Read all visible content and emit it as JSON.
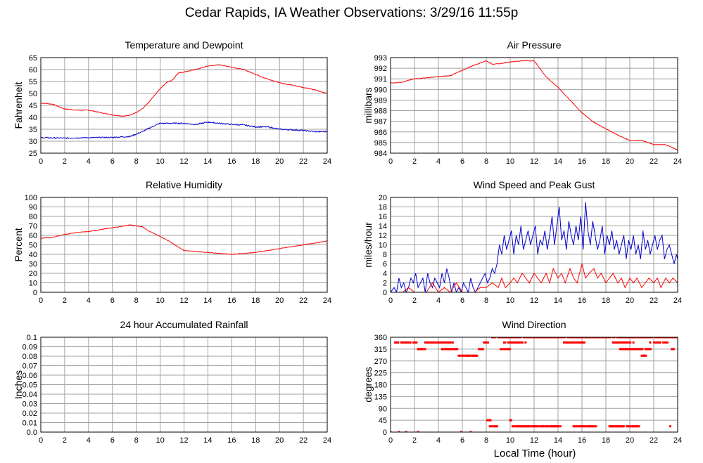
{
  "page": {
    "title": "Cedar Rapids, IA Weather Observations: 3/29/16 11:55p",
    "footer_xlabel": "Local Time (hour)"
  },
  "colors": {
    "red": "#ff0000",
    "blue": "#0000cc",
    "grid": "#a0a0a0",
    "frame": "#000000"
  },
  "chart_data": [
    {
      "id": "temp",
      "type": "line",
      "title": "Temperature and Dewpoint",
      "ylabel": "Fahrenheit",
      "xlim": [
        0,
        24
      ],
      "ylim": [
        25,
        65
      ],
      "xticks": [
        0,
        2,
        4,
        6,
        8,
        10,
        12,
        14,
        16,
        18,
        20,
        22,
        24
      ],
      "yticks": [
        25,
        30,
        35,
        40,
        45,
        50,
        55,
        60,
        65
      ],
      "grid": true,
      "series": [
        {
          "color": "red",
          "jitter": 0.3,
          "x": [
            0,
            1,
            2,
            3,
            4,
            5,
            6,
            7,
            7.5,
            8,
            8.5,
            9,
            9.5,
            10,
            10.5,
            11,
            11.5,
            12,
            12.5,
            13,
            14,
            15,
            16,
            17,
            18,
            19,
            20,
            21,
            22,
            23,
            24
          ],
          "y": [
            46,
            45.5,
            43.5,
            43,
            43,
            42,
            41,
            40.5,
            41,
            42,
            43.5,
            46,
            49,
            52,
            54.5,
            55.5,
            58.5,
            59,
            59.5,
            60,
            61.5,
            62,
            61,
            60,
            58,
            56,
            54.5,
            53.5,
            52.5,
            51.5,
            50
          ]
        },
        {
          "color": "blue",
          "jitter": 0.5,
          "x": [
            0,
            2,
            4,
            6,
            7.5,
            8.5,
            9.5,
            10,
            11,
            12,
            13,
            14,
            15,
            16,
            17,
            18,
            19,
            20,
            21,
            22,
            23,
            24
          ],
          "y": [
            31.5,
            31.3,
            31.5,
            31.6,
            32,
            34,
            36.5,
            37.5,
            37.5,
            37.5,
            37,
            38,
            37.5,
            37,
            36.8,
            36,
            36,
            35,
            34.8,
            34.5,
            34,
            34
          ]
        }
      ]
    },
    {
      "id": "pressure",
      "type": "line",
      "title": "Air Pressure",
      "ylabel": "millibars",
      "xlim": [
        0,
        24
      ],
      "ylim": [
        984,
        993
      ],
      "xticks": [
        0,
        2,
        4,
        6,
        8,
        10,
        12,
        14,
        16,
        18,
        20,
        22,
        24
      ],
      "yticks": [
        984,
        985,
        986,
        987,
        988,
        989,
        990,
        991,
        992,
        993
      ],
      "grid": true,
      "series": [
        {
          "color": "red",
          "jitter": 0.06,
          "x": [
            0,
            1,
            2,
            3,
            4,
            5,
            6,
            7,
            8,
            8.5,
            9,
            10,
            11,
            12,
            13,
            14,
            15,
            16,
            17,
            18,
            19,
            20,
            21,
            22,
            23,
            24
          ],
          "y": [
            990.6,
            990.7,
            991,
            991.1,
            991.2,
            991.3,
            991.8,
            992.3,
            992.7,
            992.4,
            992.4,
            992.6,
            992.7,
            992.7,
            991.2,
            990.2,
            989,
            987.8,
            986.9,
            986.3,
            985.7,
            985.2,
            985.2,
            984.8,
            984.8,
            984.3
          ]
        }
      ]
    },
    {
      "id": "rh",
      "type": "line",
      "title": "Relative Humidity",
      "ylabel": "Percent",
      "xlim": [
        0,
        24
      ],
      "ylim": [
        0,
        100
      ],
      "xticks": [
        0,
        2,
        4,
        6,
        8,
        10,
        12,
        14,
        16,
        18,
        20,
        22,
        24
      ],
      "yticks": [
        0,
        10,
        20,
        30,
        40,
        50,
        60,
        70,
        80,
        90,
        100
      ],
      "grid": true,
      "series": [
        {
          "color": "red",
          "jitter": 0.6,
          "x": [
            0,
            1,
            2,
            3,
            4,
            5,
            6,
            7,
            7.5,
            8,
            8.5,
            9,
            10,
            11,
            11.5,
            12,
            13,
            14,
            15,
            16,
            17,
            18,
            19,
            20,
            21,
            22,
            23,
            24
          ],
          "y": [
            57,
            58,
            61,
            63,
            64,
            66,
            68,
            70,
            71,
            70,
            69,
            65,
            59,
            52,
            48,
            44,
            43,
            42,
            41,
            40,
            41,
            42,
            44,
            46,
            48,
            50,
            52,
            54
          ]
        }
      ]
    },
    {
      "id": "wind",
      "type": "line",
      "title": "Wind Speed and Peak Gust",
      "ylabel": "miles/hour",
      "xlim": [
        0,
        24
      ],
      "ylim": [
        0,
        20
      ],
      "xticks": [
        0,
        2,
        4,
        6,
        8,
        10,
        12,
        14,
        16,
        18,
        20,
        22,
        24
      ],
      "yticks": [
        0,
        2,
        4,
        6,
        8,
        10,
        12,
        14,
        16,
        18,
        20
      ],
      "grid": true,
      "series": [
        {
          "color": "blue",
          "x": [
            0,
            0.3,
            0.5,
            0.7,
            0.9,
            1.1,
            1.3,
            1.5,
            1.7,
            1.9,
            2.1,
            2.3,
            2.5,
            2.7,
            2.9,
            3.1,
            3.3,
            3.5,
            3.7,
            3.9,
            4.1,
            4.3,
            4.5,
            4.7,
            4.9,
            5.1,
            5.3,
            5.5,
            5.7,
            5.9,
            6.1,
            6.3,
            6.5,
            6.7,
            6.9,
            7.1,
            7.3,
            7.5,
            7.7,
            7.9,
            8.1,
            8.3,
            8.5,
            8.7,
            8.9,
            9.1,
            9.3,
            9.5,
            9.7,
            9.9,
            10.1,
            10.3,
            10.5,
            10.7,
            10.9,
            11.1,
            11.3,
            11.5,
            11.7,
            11.9,
            12.1,
            12.3,
            12.5,
            12.7,
            12.9,
            13.1,
            13.3,
            13.5,
            13.7,
            13.9,
            14.1,
            14.3,
            14.5,
            14.7,
            14.9,
            15.1,
            15.3,
            15.5,
            15.7,
            15.9,
            16.1,
            16.3,
            16.5,
            16.7,
            16.9,
            17.1,
            17.3,
            17.5,
            17.7,
            17.9,
            18.1,
            18.3,
            18.5,
            18.7,
            18.9,
            19.1,
            19.3,
            19.5,
            19.7,
            19.9,
            20.1,
            20.3,
            20.5,
            20.7,
            20.9,
            21.1,
            21.3,
            21.5,
            21.7,
            21.9,
            22.1,
            22.3,
            22.5,
            22.7,
            22.9,
            23.1,
            23.3,
            23.5,
            23.7,
            23.9,
            24
          ],
          "y": [
            0,
            1,
            0,
            3,
            1,
            2,
            0,
            1,
            3,
            2,
            4,
            1,
            2,
            3,
            0,
            4,
            2,
            1,
            3,
            2,
            1,
            4,
            2,
            5,
            3,
            0,
            2,
            0,
            1,
            0,
            2,
            1,
            0,
            3,
            1,
            0,
            1,
            2,
            3,
            4,
            2,
            3,
            5,
            4,
            6,
            10,
            8,
            12,
            9,
            11,
            13,
            8,
            12,
            10,
            14,
            9,
            11,
            13,
            10,
            12,
            14,
            8,
            11,
            10,
            13,
            9,
            12,
            16,
            10,
            14,
            18,
            11,
            13,
            9,
            15,
            12,
            10,
            14,
            11,
            16,
            9,
            19,
            13,
            10,
            15,
            12,
            9,
            11,
            14,
            8,
            12,
            10,
            13,
            9,
            11,
            8,
            10,
            12,
            7,
            11,
            9,
            12,
            8,
            10,
            7,
            13,
            9,
            11,
            8,
            10,
            12,
            9,
            11,
            12,
            7,
            9,
            10,
            8,
            6,
            8,
            7
          ]
        },
        {
          "color": "red",
          "x": [
            0,
            1,
            1.5,
            2,
            3,
            3.5,
            4,
            4.5,
            5,
            5.5,
            6,
            7,
            7.5,
            8,
            8.5,
            9,
            9.3,
            9.6,
            10,
            10.3,
            10.6,
            11,
            11.3,
            11.6,
            12,
            12.3,
            12.6,
            13,
            13.3,
            13.6,
            14,
            14.3,
            14.6,
            15,
            15.3,
            15.6,
            16,
            16.3,
            16.6,
            17,
            17.3,
            17.6,
            18,
            18.3,
            18.6,
            19,
            19.3,
            19.6,
            20,
            20.3,
            20.6,
            21,
            21.3,
            21.6,
            22,
            22.3,
            22.6,
            23,
            23.3,
            23.6,
            24
          ],
          "y": [
            0,
            0,
            1,
            0,
            0,
            2,
            0,
            1,
            0,
            2,
            0,
            0,
            1,
            1,
            2,
            1,
            3,
            1,
            2,
            3,
            2,
            4,
            3,
            2,
            4,
            3,
            2,
            4,
            2,
            5,
            3,
            4,
            2,
            5,
            3,
            2,
            6,
            3,
            4,
            5,
            3,
            4,
            2,
            3,
            4,
            2,
            3,
            1,
            3,
            2,
            3,
            1,
            2,
            3,
            2,
            3,
            1,
            3,
            2,
            3,
            2
          ]
        }
      ]
    },
    {
      "id": "rain",
      "type": "line",
      "title": "24 hour Accumulated Rainfall",
      "ylabel": "Inches",
      "xlim": [
        0,
        24
      ],
      "ylim": [
        0,
        0.1
      ],
      "xticks": [
        0,
        2,
        4,
        6,
        8,
        10,
        12,
        14,
        16,
        18,
        20,
        22,
        24
      ],
      "yticks": [
        0.0,
        0.01,
        0.02,
        0.03,
        0.04,
        0.05,
        0.06,
        0.07,
        0.08,
        0.09,
        0.1
      ],
      "ytick_labels": [
        "0.0",
        "0.01",
        "0.02",
        "0.03",
        "0.04",
        "0.05",
        "0.06",
        "0.07",
        "0.08",
        "0.09",
        "0.1"
      ],
      "grid": true,
      "series": [
        {
          "color": "red",
          "x": [
            0,
            24
          ],
          "y": [
            0,
            0
          ]
        }
      ]
    },
    {
      "id": "winddir",
      "type": "scatter",
      "title": "Wind Direction",
      "ylabel": "degrees",
      "xlabel": "Local Time (hour)",
      "xlim": [
        0,
        24
      ],
      "ylim": [
        0,
        360
      ],
      "xticks": [
        0,
        2,
        4,
        6,
        8,
        10,
        12,
        14,
        16,
        18,
        20,
        22,
        24
      ],
      "yticks": [
        0,
        45,
        90,
        135,
        180,
        225,
        270,
        315,
        360
      ],
      "grid": true,
      "series": [
        {
          "color": "red",
          "segments": [
            {
              "y": 0,
              "x": [
                0,
                0.7,
                1.3,
                2.3,
                5.9,
                6.7
              ]
            },
            {
              "y": 340,
              "x": [
                0.3,
                2.2
              ]
            },
            {
              "y": 315,
              "x": [
                2.3,
                2.9
              ]
            },
            {
              "y": 340,
              "x": [
                2.9,
                5.2
              ]
            },
            {
              "y": 315,
              "x": [
                4.3,
                5.6
              ]
            },
            {
              "y": 290,
              "x": [
                5.7,
                7.3
              ]
            },
            {
              "y": 315,
              "x": [
                7.3,
                7.8
              ]
            },
            {
              "y": 340,
              "x": [
                7.8,
                8.3
              ]
            },
            {
              "y": 45,
              "x": [
                8.1,
                8.4
              ]
            },
            {
              "y": 22,
              "x": [
                8.3,
                8.9
              ]
            },
            {
              "y": 360,
              "x": [
                8.5,
                24
              ]
            },
            {
              "y": 340,
              "x": [
                9.5,
                11.3
              ]
            },
            {
              "y": 315,
              "x": [
                9.2,
                10.0
              ]
            },
            {
              "y": 22,
              "x": [
                10.2,
                14.2
              ]
            },
            {
              "y": 45,
              "x": [
                10.0,
                10.1
              ]
            },
            {
              "y": 340,
              "x": [
                14.5,
                16.2
              ]
            },
            {
              "y": 22,
              "x": [
                15.3,
                17.2
              ]
            },
            {
              "y": 340,
              "x": [
                18.6,
                20.4
              ]
            },
            {
              "y": 315,
              "x": [
                19.1,
                21.8
              ]
            },
            {
              "y": 290,
              "x": [
                21.0,
                21.4
              ]
            },
            {
              "y": 22,
              "x": [
                18.3,
                20.8
              ]
            },
            {
              "y": 340,
              "x": [
                21.7,
                23.2
              ]
            },
            {
              "y": 315,
              "x": [
                23.5,
                23.8
              ]
            },
            {
              "y": 22,
              "x": [
                23.3,
                23.4
              ]
            }
          ]
        }
      ]
    }
  ]
}
